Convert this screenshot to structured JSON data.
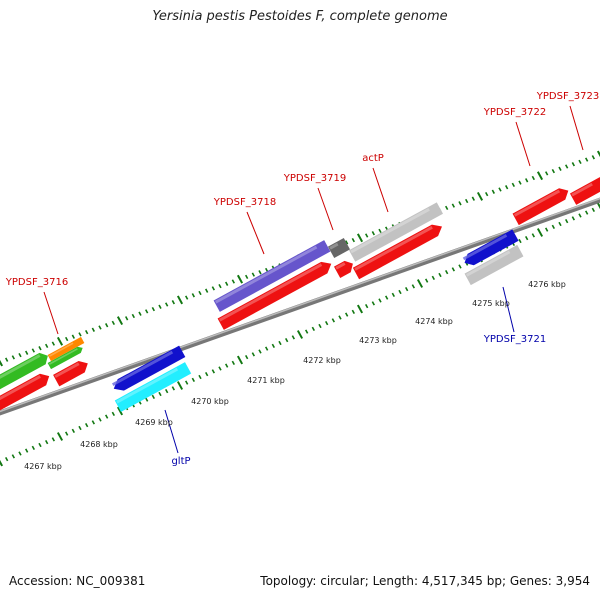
{
  "title": "Yersinia pestis Pestoides F, complete genome",
  "footer": {
    "accession_label": "Accession:",
    "accession": "NC_009381",
    "topology_label": "Topology:",
    "topology": "circular;",
    "length_label": "Length:",
    "length": "4,517,345 bp;",
    "genes_label": "Genes:",
    "genes": "3,954"
  },
  "colors": {
    "red": "#ee1111",
    "green": "#33bb22",
    "orange": "#ff8800",
    "purple": "#6655cc",
    "gray": "#c2c2c2",
    "dark_gray": "#666666",
    "blue": "#1111cc",
    "cyan": "#22eeff",
    "tick": "#117711",
    "label_red": "#cc0000",
    "label_blue": "#0000aa"
  },
  "ruler": {
    "ticks_kbp": [
      "4267 kbp",
      "4268 kbp",
      "4269 kbp",
      "4270 kbp",
      "4271 kbp",
      "4272 kbp",
      "4273 kbp",
      "4274 kbp",
      "4275 kbp",
      "4276 kbp"
    ]
  },
  "gene_labels": [
    {
      "name": "YPDSF_3716",
      "strand": "forward"
    },
    {
      "name": "YPDSF_3718",
      "strand": "forward"
    },
    {
      "name": "YPDSF_3719",
      "strand": "forward"
    },
    {
      "name": "actP",
      "strand": "forward"
    },
    {
      "name": "YPDSF_3722",
      "strand": "forward"
    },
    {
      "name": "YPDSF_3723",
      "strand": "forward"
    },
    {
      "name": "gltP",
      "strand": "reverse"
    },
    {
      "name": "YPDSF_3721",
      "strand": "reverse"
    }
  ]
}
